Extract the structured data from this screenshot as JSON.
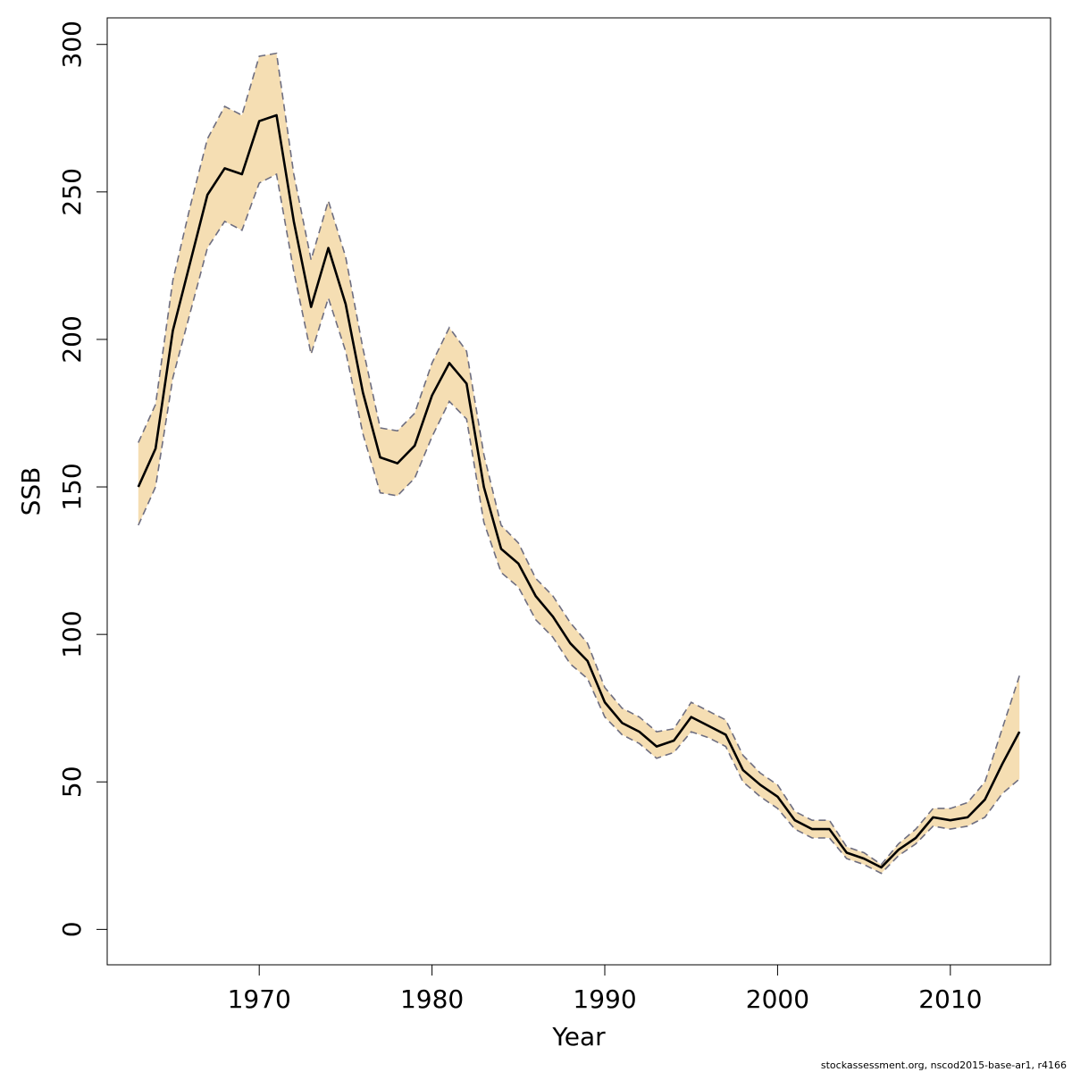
{
  "chart_data": {
    "type": "line",
    "title": "",
    "xlabel": "Year",
    "ylabel": "SSB",
    "xlim": [
      1961.2,
      1915.8
    ],
    "ylim": [
      -12,
      309
    ],
    "xticks": [
      1970,
      1980,
      1990,
      2000,
      2010
    ],
    "yticks": [
      0,
      50,
      100,
      150,
      200,
      250,
      300
    ],
    "grid": false,
    "legend": "none",
    "colors": {
      "band": "#f5deb3",
      "line": "#000000",
      "bounds": "#6e6e80",
      "axis": "#000000"
    },
    "series": [
      {
        "years": [
          1963,
          1964,
          1965,
          1966,
          1967,
          1968,
          1969,
          1970,
          1971,
          1972,
          1973,
          1974,
          1975,
          1976,
          1977,
          1978,
          1979,
          1980,
          1981,
          1982,
          1983,
          1984,
          1985,
          1986,
          1987,
          1988,
          1989,
          1990,
          1991,
          1992,
          1993,
          1994,
          1995,
          1996,
          1997,
          1998,
          1999,
          2000,
          2001,
          2002,
          2003,
          2004,
          2005,
          2006,
          2007,
          2008,
          2009,
          2010,
          2011,
          2012,
          2013,
          2014
        ],
        "ssb": [
          150,
          163,
          203,
          226,
          249,
          258,
          256,
          274,
          276,
          240,
          211,
          231,
          212,
          182,
          160,
          158,
          164,
          181,
          192,
          185,
          150,
          129,
          124,
          113,
          106,
          97,
          91,
          77,
          70,
          67,
          62,
          64,
          72,
          69,
          66,
          54,
          49,
          45,
          37,
          34,
          34,
          26,
          24,
          21,
          27,
          31,
          38,
          37,
          38,
          44,
          56,
          67
        ],
        "upper": [
          165,
          178,
          220,
          245,
          268,
          279,
          276,
          296,
          297,
          256,
          227,
          247,
          228,
          197,
          170,
          169,
          175,
          192,
          204,
          196,
          161,
          137,
          131,
          119,
          113,
          104,
          97,
          82,
          75,
          72,
          67,
          68,
          77,
          74,
          71,
          59,
          53,
          49,
          40,
          37,
          37,
          28,
          26,
          22,
          29,
          34,
          41,
          41,
          43,
          50,
          68,
          86
        ],
        "lower": [
          137,
          150,
          187,
          209,
          231,
          240,
          237,
          253,
          256,
          223,
          195,
          214,
          196,
          168,
          148,
          147,
          153,
          167,
          179,
          173,
          138,
          121,
          116,
          105,
          99,
          90,
          85,
          72,
          66,
          63,
          58,
          60,
          67,
          65,
          62,
          50,
          45,
          41,
          34,
          31,
          31,
          24,
          22,
          19,
          25,
          29,
          35,
          34,
          35,
          38,
          46,
          51
        ]
      }
    ]
  },
  "footnote": "stockassessment.org, nscod2015-base-ar1, r4166"
}
